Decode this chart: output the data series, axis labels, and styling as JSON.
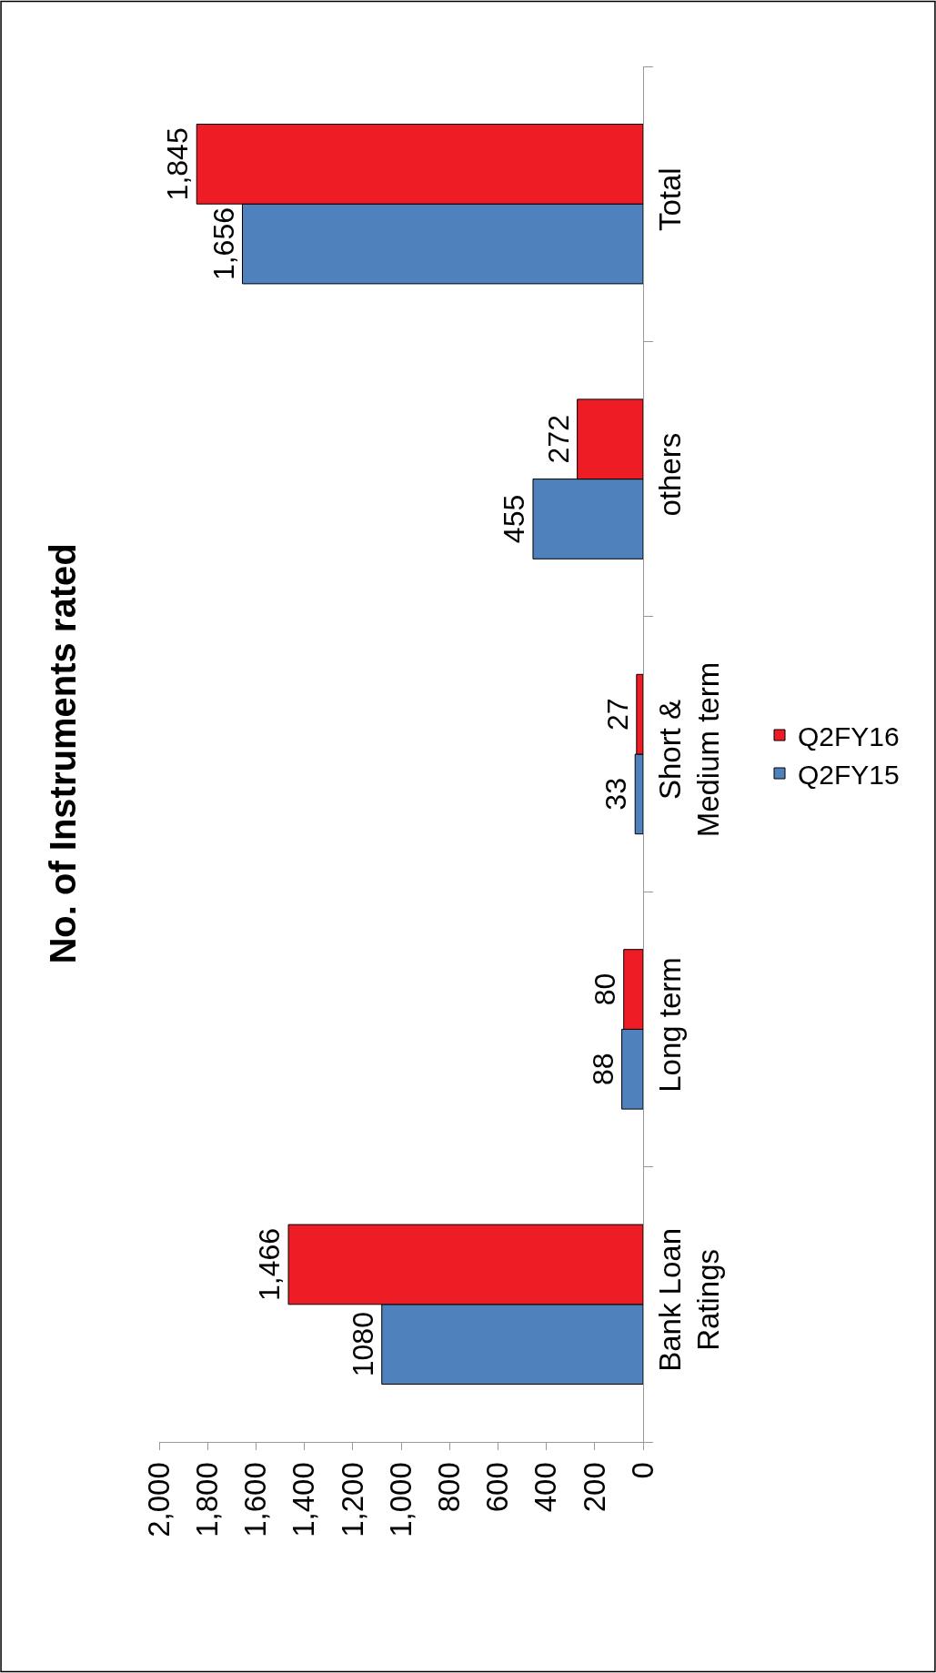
{
  "chart_data": {
    "type": "bar",
    "orientation": "horizontal",
    "title": "No. of Instruments rated",
    "categories": [
      "Total",
      "others",
      "Short & Medium term",
      "Long term",
      "Bank Loan Ratings"
    ],
    "series": [
      {
        "name": "Q2FY15",
        "color": "#4f81bd",
        "values": [
          1656,
          455,
          33,
          88,
          1080
        ],
        "value_labels": [
          "1,656",
          "455",
          "33",
          "88",
          "1080"
        ]
      },
      {
        "name": "Q2FY16",
        "color": "#ee1c25",
        "values": [
          1845,
          272,
          27,
          80,
          1466
        ],
        "value_labels": [
          "1,845",
          "272",
          "27",
          "80",
          "1,466"
        ]
      }
    ],
    "xlim": [
      2000,
      0
    ],
    "xticks": [
      {
        "value": 2000,
        "label": "2,000"
      },
      {
        "value": 1800,
        "label": "1,800"
      },
      {
        "value": 1600,
        "label": "1,600"
      },
      {
        "value": 1400,
        "label": "1,400"
      },
      {
        "value": 1200,
        "label": "1,200"
      },
      {
        "value": 1000,
        "label": "1,000"
      },
      800,
      600,
      400,
      200,
      0
    ],
    "legend": "right"
  }
}
